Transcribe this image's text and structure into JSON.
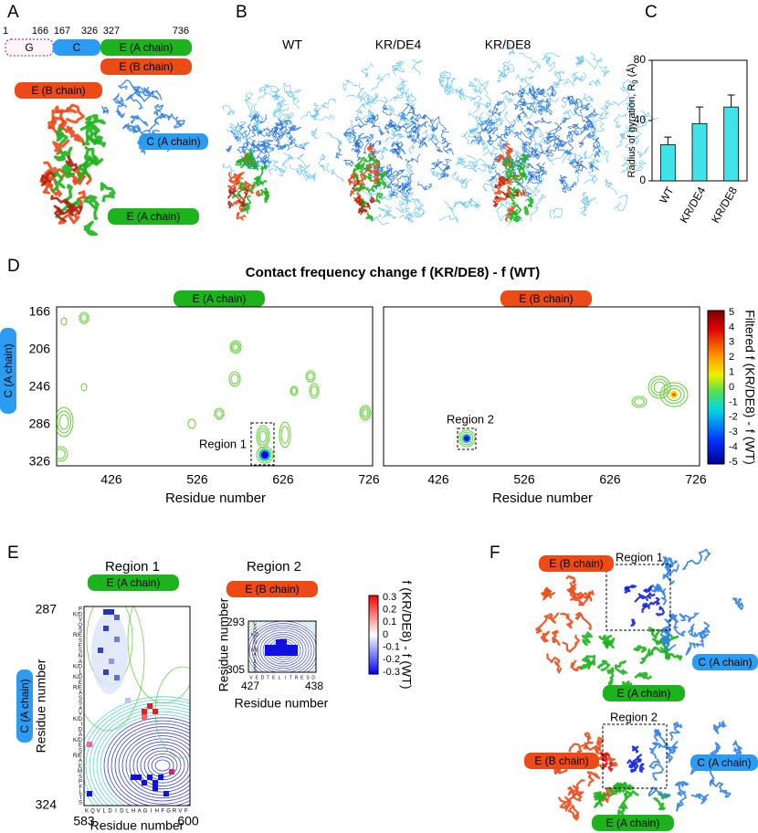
{
  "panel_letters": [
    "A",
    "B",
    "C",
    "D",
    "E",
    "F"
  ],
  "panel_a": {
    "boundaries": [
      1,
      166,
      167,
      326,
      327,
      736
    ],
    "domains": [
      "G",
      "C",
      "E (A chain)",
      "E (B chain)"
    ],
    "structure_labels": [
      "E (B chain)",
      "C (A chain)",
      "E (A chain)"
    ]
  },
  "panel_b": {
    "titles": [
      "WT",
      "KR/DE4",
      "KR/DE8"
    ]
  },
  "chart_data": {
    "type": "bar",
    "categories": [
      "WT",
      "KR/DE4",
      "KR/DE8"
    ],
    "values": [
      24,
      38,
      49
    ],
    "errors": [
      5,
      11,
      8
    ],
    "color": "#3fe3e8",
    "ylim": [
      0,
      80
    ],
    "yticks": [
      0,
      40,
      80
    ],
    "ylabel": "Radius of gyration, R",
    "ylabel_subscript": "g",
    "ylabel_unit": " (Å)"
  },
  "panel_d": {
    "title": "Contact frequency change f (KR/DE8) - f (WT)",
    "chain_labels": [
      "E (A chain)",
      "E (B chain)"
    ],
    "y_chain_label": "C (A chain)",
    "yticks": [
      166,
      206,
      246,
      286,
      326
    ],
    "xticks": [
      426,
      526,
      626,
      726
    ],
    "xlabel": "Residue number",
    "regions": [
      "Region 1",
      "Region 2"
    ],
    "colorbar_ticks": [
      5,
      4,
      3,
      2,
      1,
      0,
      -1,
      -2,
      -3,
      -4,
      -5
    ],
    "colorbar_label": "Filtered f (KR/DE8) - f (WT)"
  },
  "panel_e": {
    "region_1": {
      "title": "Region 1",
      "chain_label": "E (A chain)",
      "y_chain_label": "C (A chain)",
      "yticks": [
        287,
        324
      ],
      "xticks": [
        583,
        600
      ],
      "xlabel": "Residue number",
      "ylabel": "Residue number",
      "x_residues": [
        "K",
        "Q",
        "V",
        "L",
        "D",
        "I",
        "D",
        "L",
        "H",
        "A",
        "G",
        "I",
        "H",
        "F",
        "G",
        "R",
        "V",
        "F"
      ],
      "y_residues": [
        "P",
        "K/D",
        "V",
        "Q",
        "S",
        "R/E",
        "S",
        "E",
        "S",
        "N",
        "A",
        "K/D",
        "L",
        "K/D",
        "E",
        "R/E",
        "A",
        "S",
        "S",
        "A",
        "V",
        "K/D",
        "I",
        "D",
        "A",
        "K/D",
        "E",
        "S",
        "R/E",
        "A",
        "E",
        "M",
        "S",
        "P",
        "F",
        "L",
        "T",
        "S"
      ]
    },
    "region_2": {
      "title": "Region 2",
      "chain_label": "E (B chain)",
      "yticks": [
        293,
        305
      ],
      "xticks": [
        427,
        438
      ],
      "xlabel": "Residue number",
      "ylabel": "Residue number",
      "x_residues": [
        "V",
        "E",
        "D",
        "T",
        "E",
        "L",
        "I",
        "T",
        "R",
        "E",
        "S",
        "D"
      ],
      "y_residues": [
        "C",
        "S",
        "D",
        "K/D",
        "E",
        "N",
        "L",
        "R/E",
        "A",
        "L",
        "A",
        "S",
        "S"
      ],
      "colorbar_ticks": [
        0.3,
        0.2,
        0.1,
        0,
        -0.1,
        -0.2,
        -0.3
      ],
      "colorbar_label": "f (KR/DE8) - f (WT)"
    }
  },
  "panel_f": {
    "region_1": {
      "title": "Region 1",
      "labels": [
        "E (B chain)",
        "C (A chain)",
        "E (A chain)"
      ]
    },
    "region_2": {
      "title": "Region 2",
      "labels": [
        "E (B chain)",
        "C (A chain)",
        "E (A chain)"
      ]
    }
  }
}
